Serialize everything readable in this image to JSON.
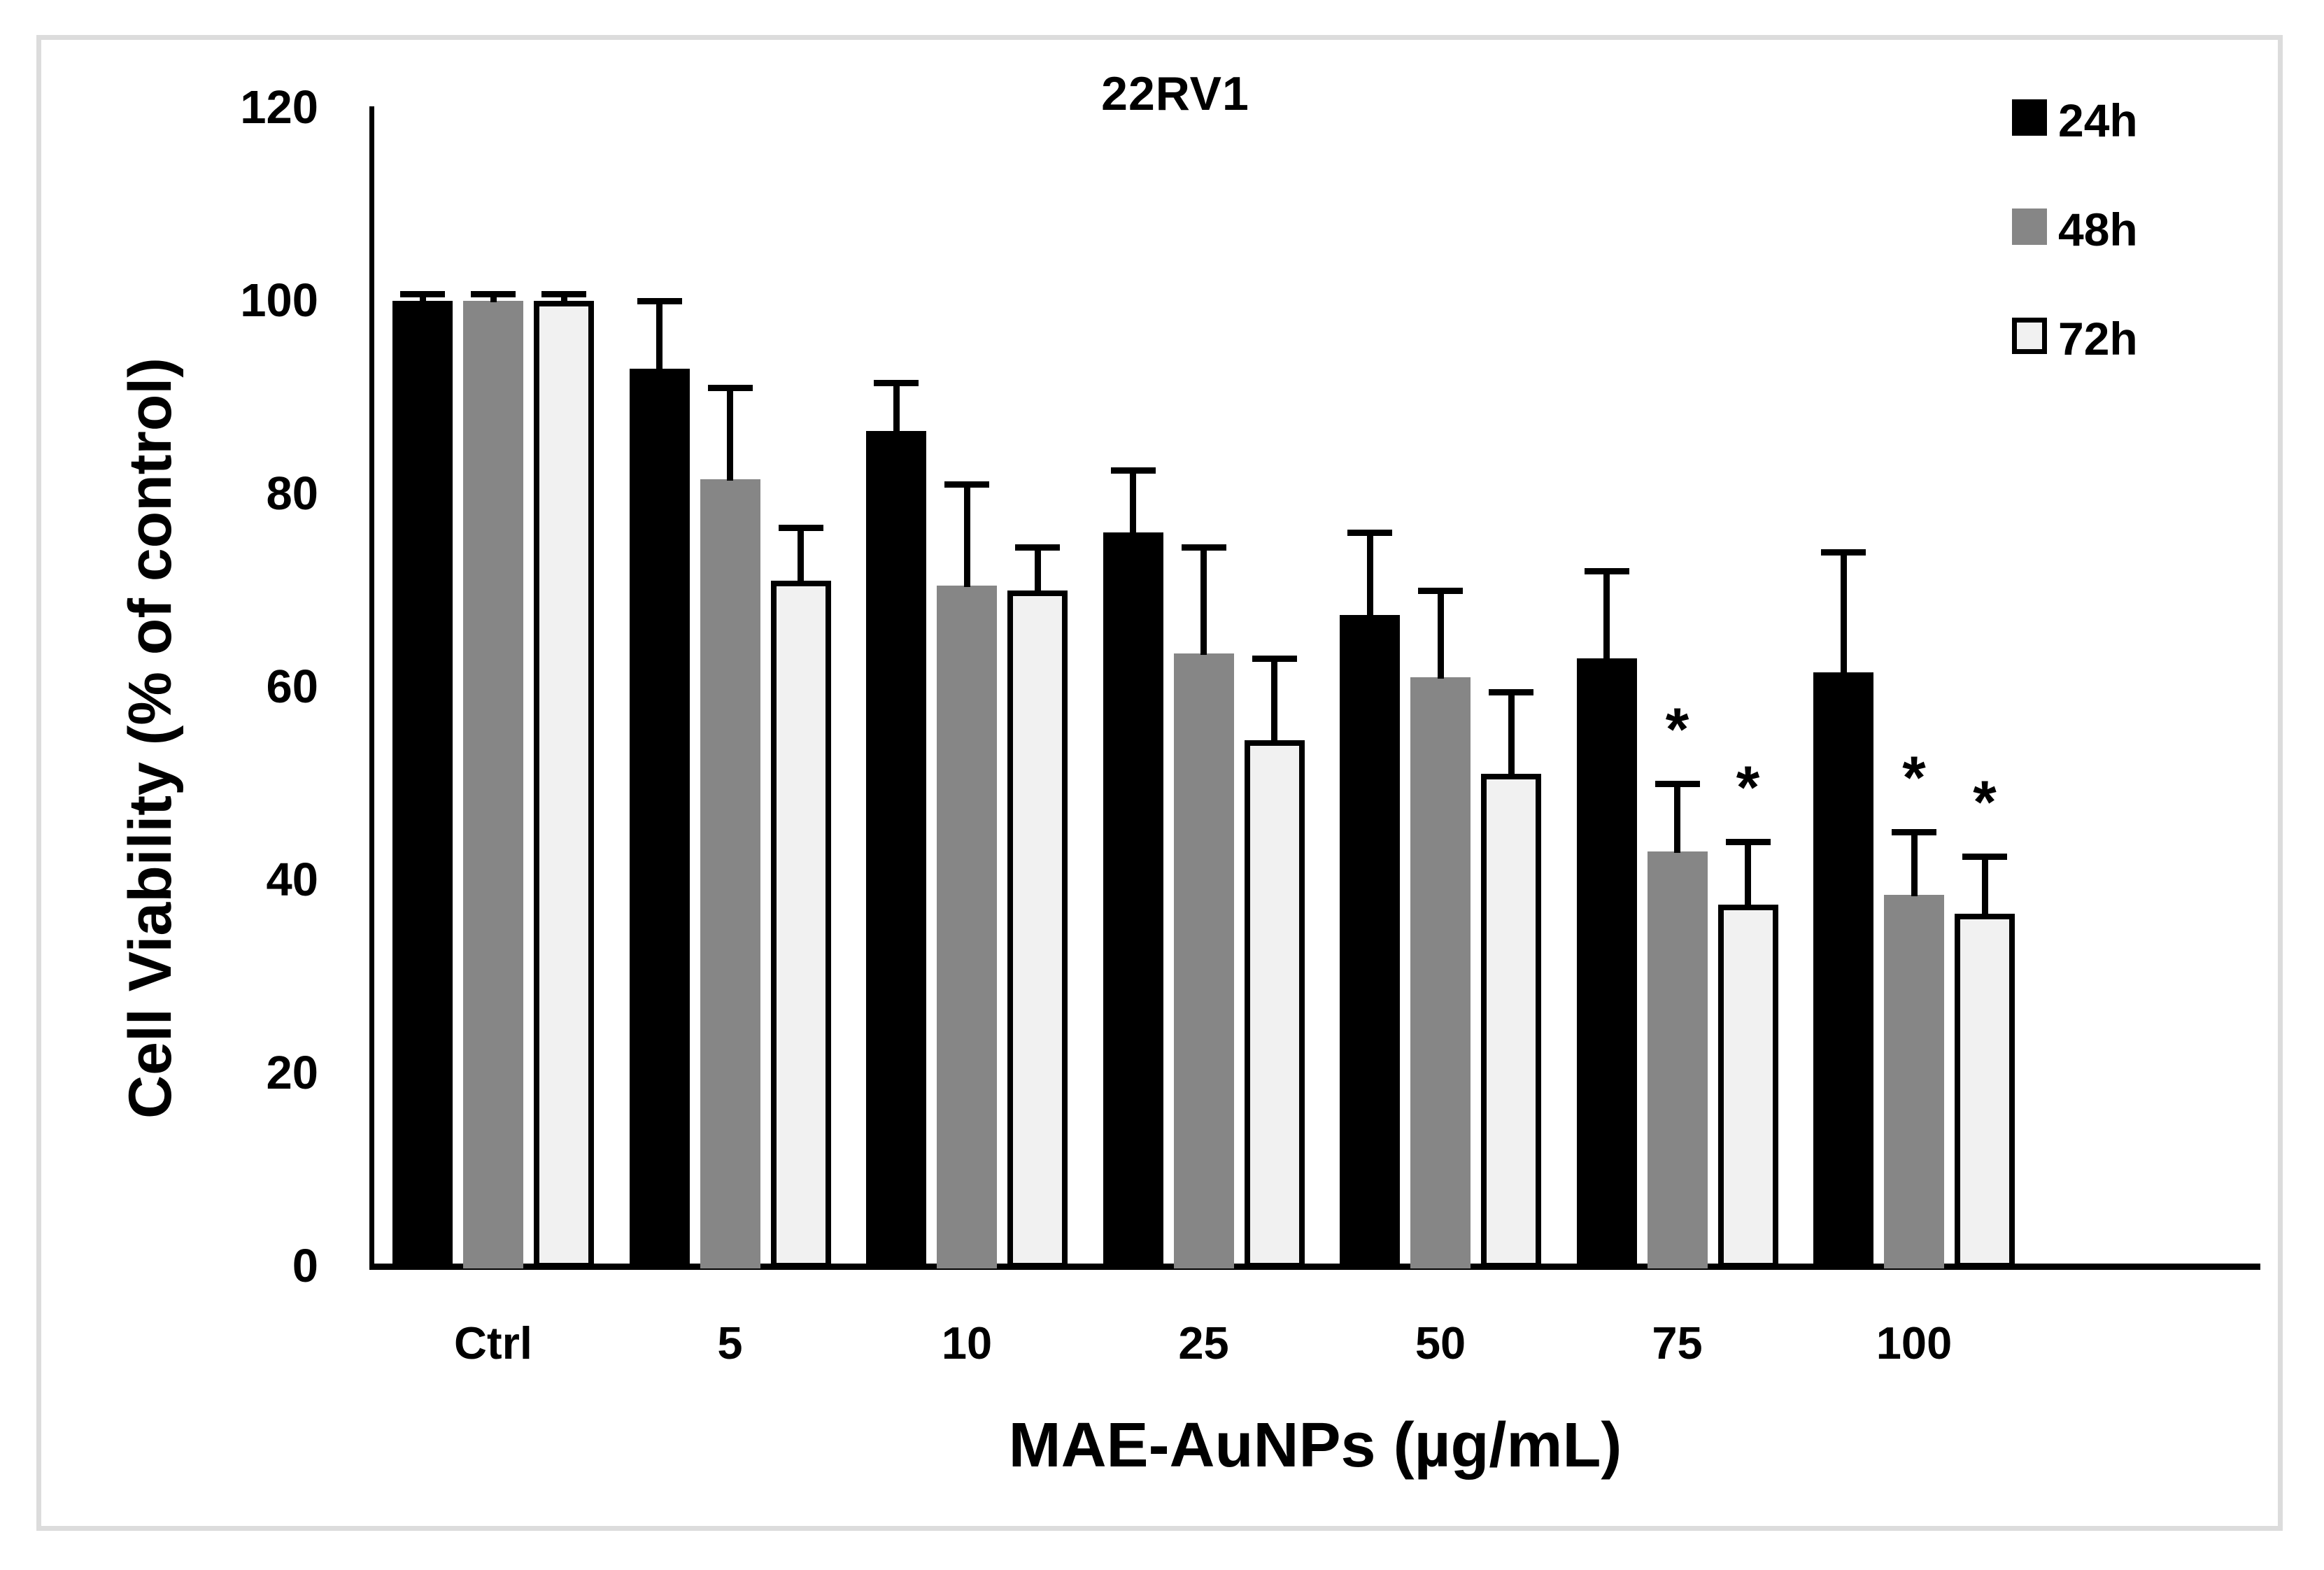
{
  "figure": {
    "background": "#ffffff",
    "border_color": "#dcdcdc"
  },
  "chart_data": {
    "type": "bar",
    "title": "22RV1",
    "xlabel": "MAE-AuNPs (µg/mL)",
    "ylabel": "Cell Viability (% of control)",
    "ylim": [
      0,
      120
    ],
    "yticks": [
      0,
      20,
      40,
      60,
      80,
      100,
      120
    ],
    "categories": [
      "Ctrl",
      "5",
      "10",
      "25",
      "50",
      "75",
      "100"
    ],
    "grid": false,
    "legend_position": "top-right",
    "error_bars": "upper only",
    "significance_marker": "*",
    "series": [
      {
        "name": "24h",
        "color": "#000000",
        "values": [
          100,
          93,
          86.5,
          76,
          67.5,
          63,
          61.5
        ],
        "errors": [
          0.7,
          7,
          5,
          6.5,
          8.5,
          9,
          12.5
        ],
        "significant": [
          false,
          false,
          false,
          false,
          false,
          false,
          false
        ]
      },
      {
        "name": "48h",
        "color": "#868686",
        "values": [
          100,
          81.5,
          70.5,
          63.5,
          61,
          43,
          38.5
        ],
        "errors": [
          0.7,
          9.5,
          10.5,
          11,
          9,
          7,
          6.5
        ],
        "significant": [
          false,
          false,
          false,
          false,
          false,
          true,
          true
        ]
      },
      {
        "name": "72h",
        "color": "#f1f1f1",
        "border_color": "#000000",
        "values": [
          100,
          71,
          70,
          54.5,
          51,
          37.5,
          36.5
        ],
        "errors": [
          0.7,
          5.5,
          4.5,
          8.5,
          8.5,
          6.5,
          6
        ],
        "significant": [
          false,
          false,
          false,
          false,
          false,
          true,
          true
        ]
      }
    ]
  }
}
